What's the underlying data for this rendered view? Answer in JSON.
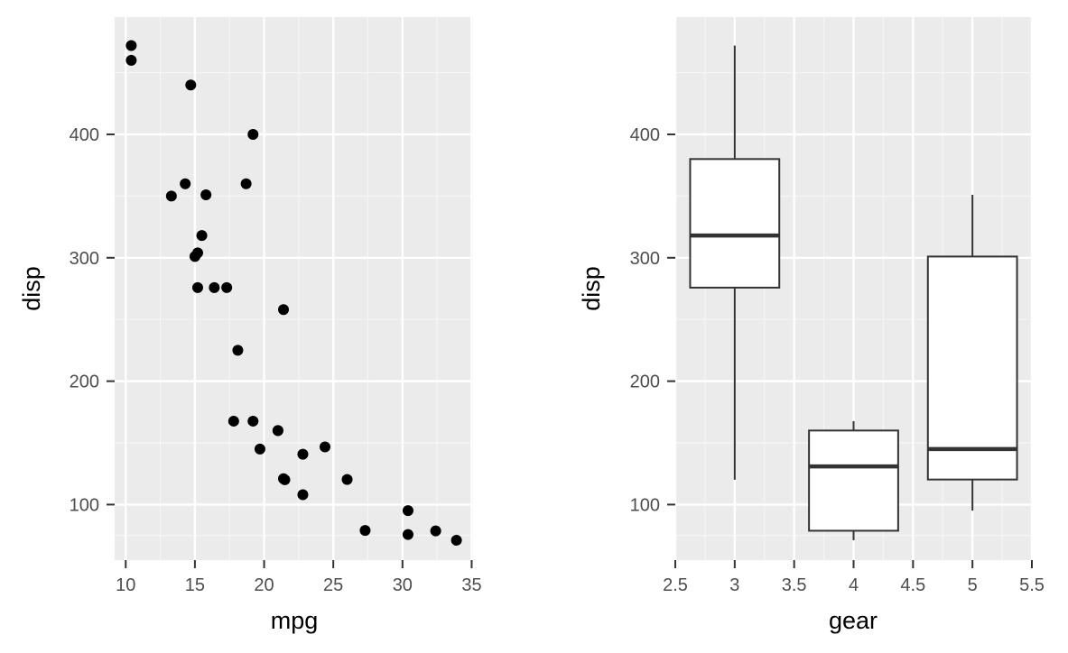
{
  "colors": {
    "panel_bg": "#ebebeb",
    "grid_major": "#ffffff",
    "grid_minor": "#f5f5f5",
    "point": "#000000",
    "box_line": "#333333",
    "box_fill": "#ffffff",
    "tick": "#333333",
    "tick_text": "#4d4d4d"
  },
  "chart_data": [
    {
      "type": "scatter",
      "xlabel": "mpg",
      "ylabel": "disp",
      "xlim": [
        9.2,
        35.1
      ],
      "ylim": [
        55,
        495
      ],
      "xticks": [
        10,
        15,
        20,
        25,
        30,
        35
      ],
      "yticks": [
        100,
        200,
        300,
        400
      ],
      "grid": true,
      "points": [
        {
          "x": 21.0,
          "y": 160
        },
        {
          "x": 21.0,
          "y": 160
        },
        {
          "x": 22.8,
          "y": 108
        },
        {
          "x": 21.4,
          "y": 258
        },
        {
          "x": 18.7,
          "y": 360
        },
        {
          "x": 18.1,
          "y": 225
        },
        {
          "x": 14.3,
          "y": 360
        },
        {
          "x": 24.4,
          "y": 146.7
        },
        {
          "x": 22.8,
          "y": 140.8
        },
        {
          "x": 19.2,
          "y": 167.6
        },
        {
          "x": 17.8,
          "y": 167.6
        },
        {
          "x": 16.4,
          "y": 275.8
        },
        {
          "x": 17.3,
          "y": 275.8
        },
        {
          "x": 15.2,
          "y": 275.8
        },
        {
          "x": 10.4,
          "y": 472
        },
        {
          "x": 10.4,
          "y": 460
        },
        {
          "x": 14.7,
          "y": 440
        },
        {
          "x": 32.4,
          "y": 78.7
        },
        {
          "x": 30.4,
          "y": 75.7
        },
        {
          "x": 33.9,
          "y": 71.1
        },
        {
          "x": 21.5,
          "y": 120.1
        },
        {
          "x": 15.5,
          "y": 318
        },
        {
          "x": 15.2,
          "y": 304
        },
        {
          "x": 13.3,
          "y": 350
        },
        {
          "x": 19.2,
          "y": 400
        },
        {
          "x": 27.3,
          "y": 79
        },
        {
          "x": 26.0,
          "y": 120.3
        },
        {
          "x": 30.4,
          "y": 95.1
        },
        {
          "x": 15.8,
          "y": 351
        },
        {
          "x": 19.7,
          "y": 145
        },
        {
          "x": 15.0,
          "y": 301
        },
        {
          "x": 21.4,
          "y": 121
        }
      ]
    },
    {
      "type": "box",
      "xlabel": "gear",
      "ylabel": "disp",
      "xlim": [
        2.5,
        5.5
      ],
      "ylim": [
        55,
        495
      ],
      "xticks": [
        2.5,
        3,
        3.5,
        4,
        4.5,
        5,
        5.5
      ],
      "xtick_labels": [
        "2.5",
        "3",
        "3.5",
        "4",
        "4.5",
        "5",
        "5.5"
      ],
      "yticks": [
        100,
        200,
        300,
        400
      ],
      "grid": true,
      "boxes": [
        {
          "x": 3,
          "min": 120.1,
          "q1": 275.8,
          "median": 318,
          "q3": 380,
          "max": 472
        },
        {
          "x": 4,
          "min": 71.1,
          "q1": 78.8,
          "median": 130.9,
          "q3": 160,
          "max": 167.6
        },
        {
          "x": 5,
          "min": 95.1,
          "q1": 120.3,
          "median": 145,
          "q3": 301,
          "max": 351
        }
      ],
      "box_width": 0.75
    }
  ]
}
